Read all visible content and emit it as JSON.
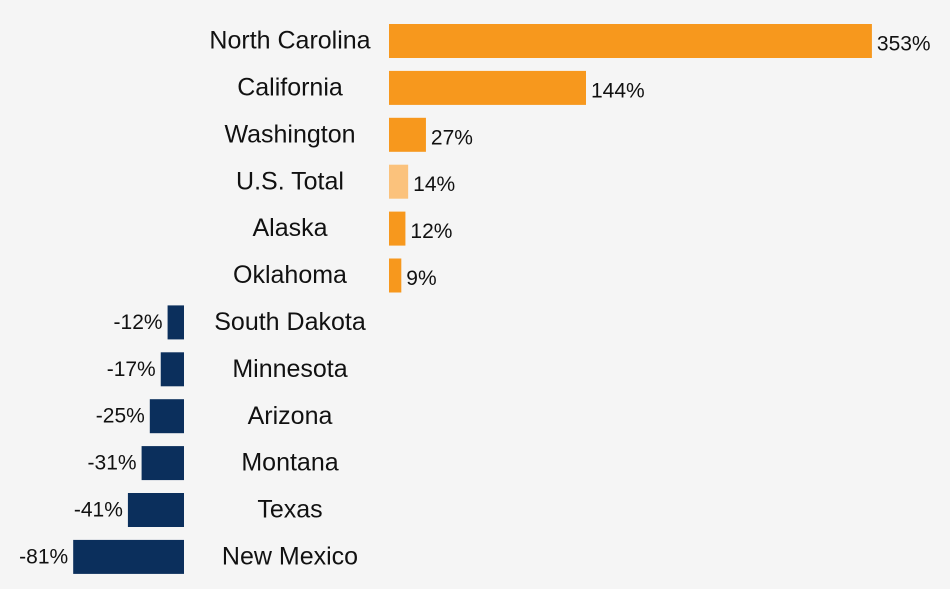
{
  "chart_data": {
    "type": "diverging-bar",
    "categories": [
      "North Carolina",
      "California",
      "Washington",
      "U.S. Total",
      "Alaska",
      "Oklahoma",
      "South Dakota",
      "Minnesota",
      "Arizona",
      "Montana",
      "Texas",
      "New Mexico"
    ],
    "values": [
      353,
      144,
      27,
      14,
      12,
      9,
      -12,
      -17,
      -25,
      -31,
      -41,
      -81
    ],
    "value_labels": [
      "353%",
      "144%",
      "27%",
      "14%",
      "12%",
      "9%",
      "-12%",
      "-17%",
      "-25%",
      "-31%",
      "-41%",
      "-81%"
    ],
    "colors": [
      "#f7981d",
      "#f7981d",
      "#f7981d",
      "#fbc27c",
      "#f7981d",
      "#f7981d",
      "#0b2f5c",
      "#0b2f5c",
      "#0b2f5c",
      "#0b2f5c",
      "#0b2f5c",
      "#0b2f5c"
    ]
  }
}
